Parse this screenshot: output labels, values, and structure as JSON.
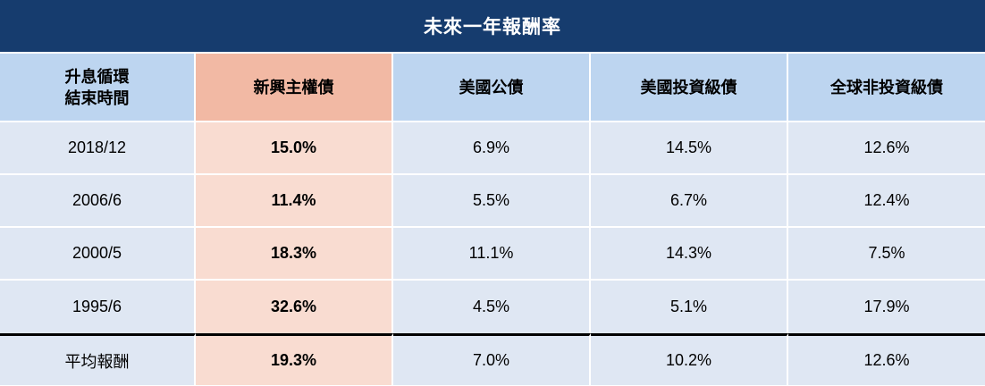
{
  "title": "未來一年報酬率",
  "table": {
    "headers": {
      "col0_line1": "升息循環",
      "col0_line2": "結束時間",
      "col1": "新興主權債",
      "col2": "美國公債",
      "col3": "美國投資級債",
      "col4": "全球非投資級債"
    },
    "rows": [
      {
        "period": "2018/12",
        "em_sovereign": "15.0%",
        "us_treasury": "6.9%",
        "us_ig": "14.5%",
        "global_hy": "12.6%"
      },
      {
        "period": "2006/6",
        "em_sovereign": "11.4%",
        "us_treasury": "5.5%",
        "us_ig": "6.7%",
        "global_hy": "12.4%"
      },
      {
        "period": "2000/5",
        "em_sovereign": "18.3%",
        "us_treasury": "11.1%",
        "us_ig": "14.3%",
        "global_hy": "7.5%"
      },
      {
        "period": "1995/6",
        "em_sovereign": "32.6%",
        "us_treasury": "4.5%",
        "us_ig": "5.1%",
        "global_hy": "17.9%"
      }
    ],
    "average": {
      "label": "平均報酬",
      "em_sovereign": "19.3%",
      "us_treasury": "7.0%",
      "us_ig": "10.2%",
      "global_hy": "12.6%"
    }
  },
  "colors": {
    "title_bg": "#163c6e",
    "header_bg": "#bdd5f0",
    "highlight_header_bg": "#f2b9a4",
    "cell_bg": "#dfe7f3",
    "highlight_cell_bg": "#f9dcd1"
  }
}
